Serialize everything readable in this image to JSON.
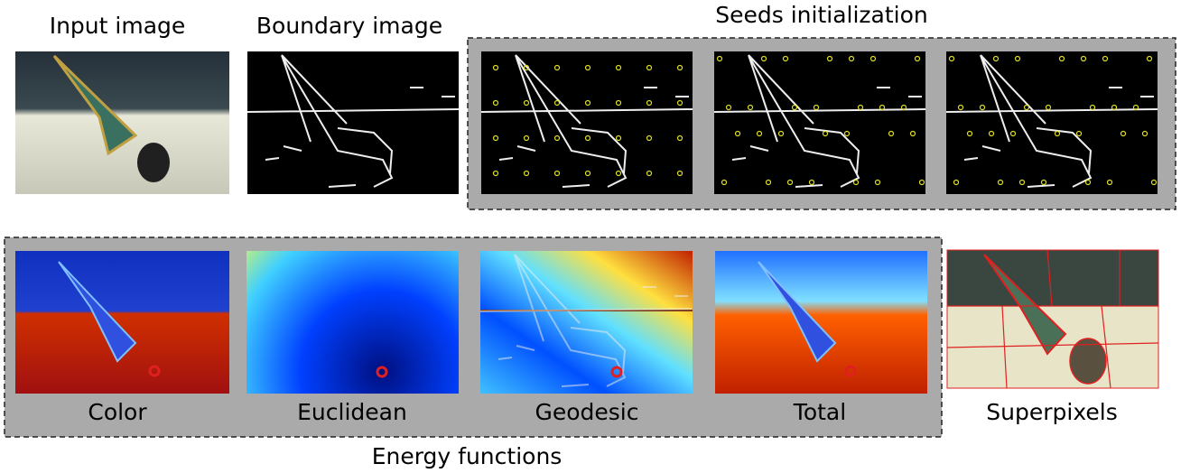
{
  "labels": {
    "input": "Input image",
    "boundary": "Boundary image",
    "seeds": "Seeds initialization",
    "color": "Color",
    "euclidean": "Euclidean",
    "geodesic": "Geodesic",
    "total": "Total",
    "superpixels": "Superpixels",
    "energy": "Energy functions"
  }
}
